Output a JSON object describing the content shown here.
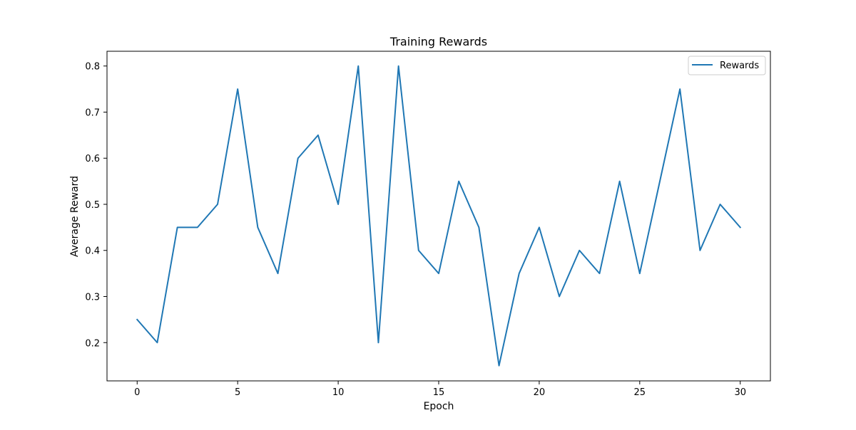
{
  "chart_data": {
    "type": "line",
    "title": "Training Rewards",
    "xlabel": "Epoch",
    "ylabel": "Average Reward",
    "xlim": [
      -1.5,
      31.5
    ],
    "ylim": [
      0.117,
      0.832
    ],
    "xticks": [
      0,
      5,
      10,
      15,
      20,
      25,
      30
    ],
    "yticks": [
      0.2,
      0.3,
      0.4,
      0.5,
      0.6,
      0.7,
      0.8
    ],
    "ytick_labels": [
      "0.2",
      "0.3",
      "0.4",
      "0.5",
      "0.6",
      "0.7",
      "0.8"
    ],
    "grid": false,
    "legend_position": "top-right",
    "series": [
      {
        "name": "Rewards",
        "color": "#1f77b4",
        "x": [
          0,
          1,
          2,
          3,
          4,
          5,
          6,
          7,
          8,
          9,
          10,
          11,
          12,
          13,
          14,
          15,
          16,
          17,
          18,
          19,
          20,
          21,
          22,
          23,
          24,
          25,
          26,
          27,
          28,
          29,
          30
        ],
        "values": [
          0.25,
          0.2,
          0.45,
          0.45,
          0.5,
          0.75,
          0.45,
          0.35,
          0.6,
          0.65,
          0.5,
          0.8,
          0.2,
          0.8,
          0.4,
          0.35,
          0.55,
          0.45,
          0.15,
          0.35,
          0.45,
          0.3,
          0.4,
          0.35,
          0.55,
          0.35,
          0.55,
          0.75,
          0.4,
          0.5,
          0.45
        ]
      }
    ]
  }
}
